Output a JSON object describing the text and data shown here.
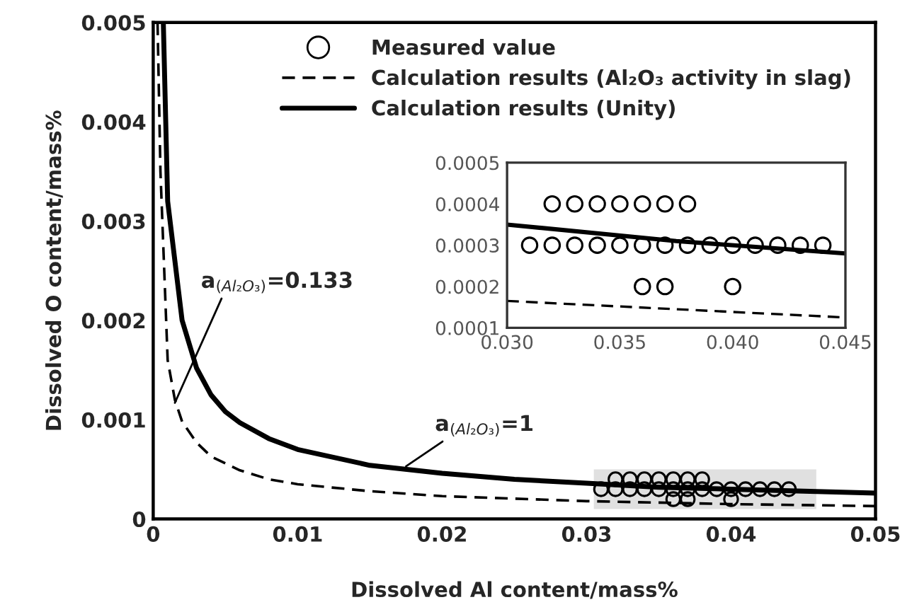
{
  "chart_data": [
    {
      "type": "scatter",
      "xlabel": "Dissolved Al content/mass%",
      "ylabel": "Dissolved O content/mass%",
      "xlim": [
        0,
        0.05
      ],
      "ylim": [
        0,
        0.005
      ],
      "xticks": [
        0,
        0.01,
        0.02,
        0.03,
        0.04,
        0.05
      ],
      "yticks": [
        0,
        0.001,
        0.002,
        0.003,
        0.004,
        0.005
      ],
      "legend": "top right",
      "grid": false,
      "bands": [
        {
          "axis": "x",
          "from": 0.0305,
          "to": 0.0459,
          "color": "#e0e0e0"
        }
      ],
      "annotations": [
        {
          "text": "a$_{(Al₂O₃)}$=0.133",
          "x": 0.0015,
          "y": 0.00117
        },
        {
          "text": "a$_{(Al₂O₃)}$=1",
          "x": 0.0175,
          "y": 0.00053
        }
      ],
      "series": [
        {
          "name": "Measured value",
          "marker": "circle",
          "color": "#000000",
          "x": [
            0.032,
            0.033,
            0.034,
            0.035,
            0.036,
            0.037,
            0.038,
            0.031,
            0.032,
            0.033,
            0.034,
            0.035,
            0.036,
            0.037,
            0.038,
            0.039,
            0.04,
            0.041,
            0.042,
            0.043,
            0.044,
            0.036,
            0.037,
            0.04
          ],
          "values": [
            0.0004,
            0.0004,
            0.0004,
            0.0004,
            0.0004,
            0.0004,
            0.0004,
            0.0003,
            0.0003,
            0.0003,
            0.0003,
            0.0003,
            0.0003,
            0.0003,
            0.0003,
            0.0003,
            0.0003,
            0.0003,
            0.0003,
            0.0003,
            0.0003,
            0.0002,
            0.0002,
            0.0002
          ]
        },
        {
          "name": "Calculation results (Al₂O₃ activity in slag)",
          "type": "line",
          "line_style": "dashed",
          "marker": "none",
          "color": "#000000",
          "x": [
            0.0003,
            0.0005,
            0.001,
            0.0015,
            0.002,
            0.003,
            0.004,
            0.006,
            0.008,
            0.01,
            0.015,
            0.02,
            0.03,
            0.04,
            0.05
          ],
          "values": [
            0.005,
            0.0035,
            0.0016,
            0.0012,
            0.00098,
            0.00077,
            0.00063,
            0.00049,
            0.0004,
            0.00035,
            0.00028,
            0.00023,
            0.00018,
            0.00015,
            0.00013
          ]
        },
        {
          "name": "Calculation results (Unity)",
          "type": "line",
          "line_style": "solid",
          "marker": "none",
          "color": "#000000",
          "x": [
            0.0007,
            0.001,
            0.002,
            0.003,
            0.004,
            0.005,
            0.006,
            0.008,
            0.01,
            0.015,
            0.02,
            0.025,
            0.03,
            0.035,
            0.04,
            0.045,
            0.05
          ],
          "values": [
            0.005,
            0.0032,
            0.002,
            0.00152,
            0.00125,
            0.00108,
            0.00097,
            0.00081,
            0.0007,
            0.00054,
            0.00046,
            0.0004,
            0.00036,
            0.00032,
            0.0003,
            0.00028,
            0.00026
          ]
        }
      ]
    },
    {
      "type": "scatter",
      "xlim": [
        0.03,
        0.045
      ],
      "ylim": [
        0.0001,
        0.0005
      ],
      "xticks": [
        {
          "value": 0.03,
          "label": "0.030"
        },
        {
          "value": 0.035,
          "label": "0.035"
        },
        {
          "value": 0.04,
          "label": "0.040"
        },
        {
          "value": 0.045,
          "label": "0.045"
        }
      ],
      "yticks": [
        0.0001,
        0.0002,
        0.0003,
        0.0004,
        0.0005
      ],
      "grid": false,
      "series": [
        {
          "marker": "circle",
          "color": "#000000",
          "x": [
            0.032,
            0.033,
            0.034,
            0.035,
            0.036,
            0.037,
            0.038,
            0.031,
            0.032,
            0.033,
            0.034,
            0.035,
            0.036,
            0.037,
            0.038,
            0.039,
            0.04,
            0.041,
            0.042,
            0.043,
            0.044,
            0.036,
            0.037,
            0.04
          ],
          "values": [
            0.0004,
            0.0004,
            0.0004,
            0.0004,
            0.0004,
            0.0004,
            0.0004,
            0.0003,
            0.0003,
            0.0003,
            0.0003,
            0.0003,
            0.0003,
            0.0003,
            0.0003,
            0.0003,
            0.0003,
            0.0003,
            0.0003,
            0.0003,
            0.0003,
            0.0002,
            0.0002,
            0.0002
          ]
        },
        {
          "type": "line",
          "line_style": "dashed",
          "marker": "none",
          "color": "#000000",
          "x": [
            0.03,
            0.045
          ],
          "values": [
            0.000165,
            0.000125
          ]
        },
        {
          "type": "line",
          "line_style": "solid",
          "marker": "none",
          "color": "#000000",
          "x": [
            0.03,
            0.0375,
            0.045
          ],
          "values": [
            0.00035,
            0.00031,
            0.00028
          ]
        }
      ]
    }
  ]
}
